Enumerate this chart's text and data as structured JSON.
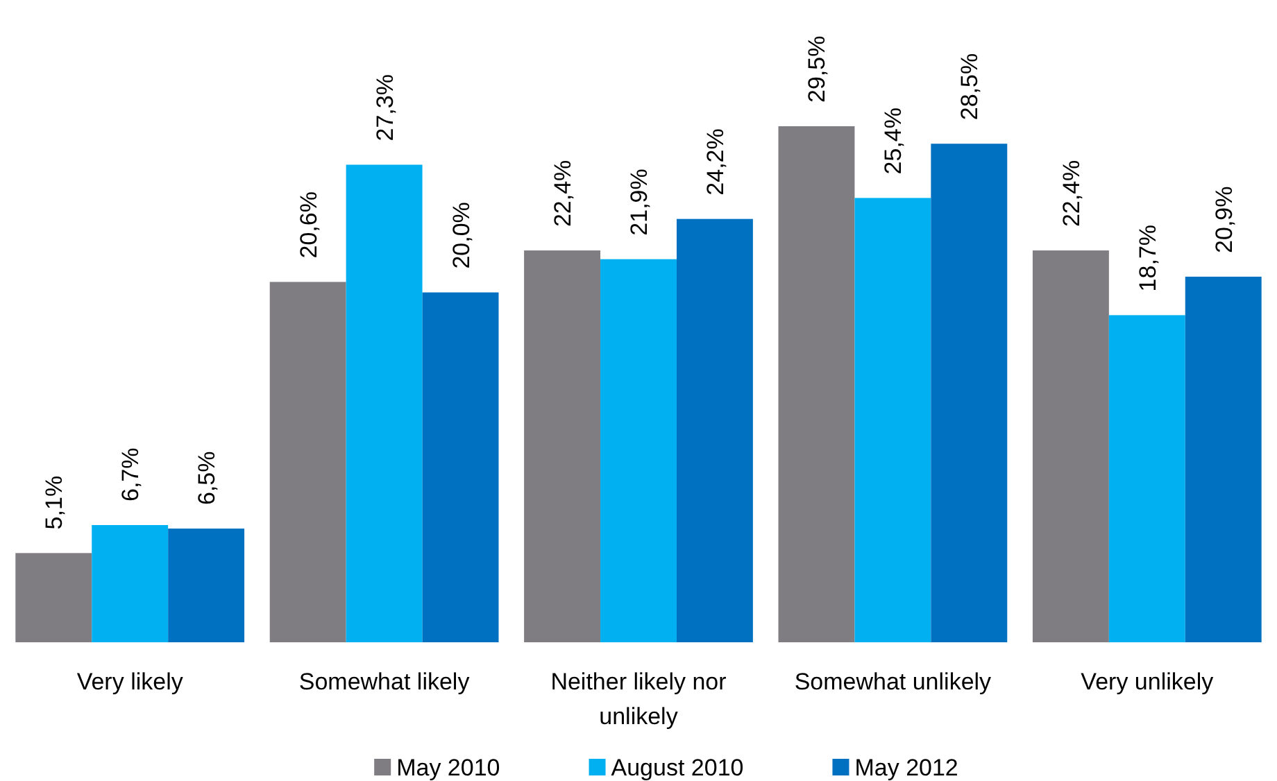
{
  "chart_data": {
    "type": "bar",
    "categories": [
      "Very likely",
      "Somewhat likely",
      "Neither likely nor unlikely",
      "Somewhat unlikely",
      "Very unlikely"
    ],
    "series": [
      {
        "name": "May 2010",
        "color": "#7f7c82",
        "values": [
          5.1,
          20.6,
          22.4,
          29.5,
          22.4
        ],
        "value_labels": [
          "5,1%",
          "20,6%",
          "22,4%",
          "29,5%",
          "22,4%"
        ]
      },
      {
        "name": "August 2010",
        "color": "#00b0f0",
        "values": [
          6.7,
          27.3,
          21.9,
          25.4,
          18.7
        ],
        "value_labels": [
          "6,7%",
          "27,3%",
          "21,9%",
          "25,4%",
          "18,7%"
        ]
      },
      {
        "name": "May 2012",
        "color": "#0070c0",
        "values": [
          6.5,
          20.0,
          24.2,
          28.5,
          20.9
        ],
        "value_labels": [
          "6,5%",
          "20,0%",
          "24,2%",
          "28,5%",
          "20,9%"
        ]
      }
    ],
    "legend": "bottom"
  }
}
